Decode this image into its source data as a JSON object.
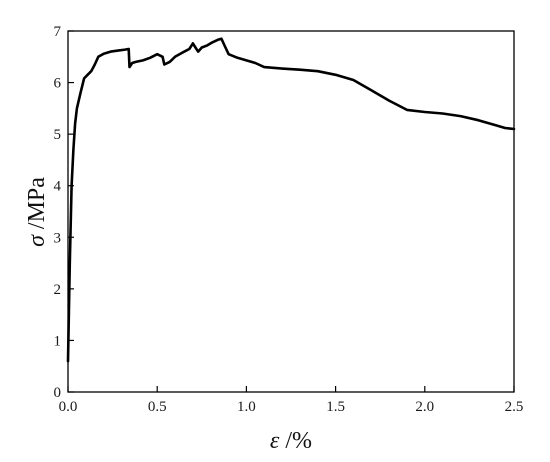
{
  "chart_data": {
    "type": "line",
    "title": "",
    "xlabel_symbol": "ε",
    "xlabel_unit": " /%",
    "ylabel_symbol": "σ",
    "ylabel_unit": " /MPa",
    "xlim": [
      0,
      2.5
    ],
    "ylim": [
      0,
      7
    ],
    "xticks": [
      0.0,
      0.5,
      1.0,
      1.5,
      2.0,
      2.5
    ],
    "xtick_labels": [
      "0.0",
      "0.5",
      "1.0",
      "1.5",
      "2.0",
      "2.5"
    ],
    "yticks": [
      0,
      1,
      2,
      3,
      4,
      5,
      6,
      7
    ],
    "ytick_labels": [
      "0",
      "1",
      "2",
      "3",
      "4",
      "5",
      "6",
      "7"
    ],
    "grid": false,
    "legend": "none",
    "line_color": "#000000",
    "series": [
      {
        "x": [
          0.0,
          0.01,
          0.02,
          0.03,
          0.04,
          0.05,
          0.07,
          0.09,
          0.11,
          0.13,
          0.15,
          0.17,
          0.2,
          0.24,
          0.28,
          0.32,
          0.34,
          0.345,
          0.36,
          0.38,
          0.42,
          0.46,
          0.5,
          0.53,
          0.54,
          0.57,
          0.6,
          0.64,
          0.68,
          0.7,
          0.72,
          0.73,
          0.75,
          0.78,
          0.81,
          0.84,
          0.86,
          0.88,
          0.9,
          0.95,
          1.0,
          1.05,
          1.1,
          1.2,
          1.3,
          1.4,
          1.5,
          1.6,
          1.7,
          1.8,
          1.9,
          2.0,
          2.1,
          2.2,
          2.3,
          2.4,
          2.45,
          2.5
        ],
        "y": [
          0.6,
          2.5,
          4.0,
          4.7,
          5.2,
          5.5,
          5.8,
          6.08,
          6.15,
          6.22,
          6.35,
          6.5,
          6.56,
          6.6,
          6.62,
          6.64,
          6.65,
          6.3,
          6.38,
          6.4,
          6.43,
          6.48,
          6.55,
          6.5,
          6.35,
          6.4,
          6.5,
          6.58,
          6.65,
          6.76,
          6.65,
          6.6,
          6.68,
          6.72,
          6.78,
          6.83,
          6.85,
          6.7,
          6.55,
          6.48,
          6.43,
          6.38,
          6.3,
          6.27,
          6.25,
          6.22,
          6.15,
          6.05,
          5.85,
          5.65,
          5.47,
          5.43,
          5.4,
          5.35,
          5.27,
          5.17,
          5.12,
          5.1
        ]
      }
    ]
  }
}
